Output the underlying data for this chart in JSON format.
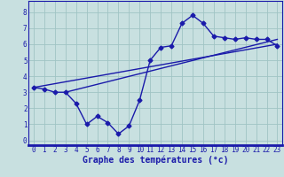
{
  "x": [
    0,
    1,
    2,
    3,
    4,
    5,
    6,
    7,
    8,
    9,
    10,
    11,
    12,
    13,
    14,
    15,
    16,
    17,
    18,
    19,
    20,
    21,
    22,
    23
  ],
  "temp_curve": [
    3.3,
    3.2,
    3.0,
    3.0,
    2.3,
    1.0,
    1.5,
    1.1,
    0.4,
    0.9,
    2.5,
    5.0,
    5.8,
    5.9,
    7.3,
    7.8,
    7.3,
    6.5,
    6.4,
    6.3,
    6.4,
    6.3,
    6.3,
    5.9
  ],
  "line1_x": [
    0,
    23
  ],
  "line1_y": [
    3.3,
    6.0
  ],
  "line2_x": [
    3,
    23
  ],
  "line2_y": [
    3.0,
    6.3
  ],
  "color": "#1a1aaa",
  "bg_color": "#c8e0e0",
  "grid_color": "#a0c4c4",
  "xlabel": "Graphe des températures (°c)",
  "xlim": [
    -0.5,
    23.5
  ],
  "ylim": [
    -0.3,
    8.7
  ],
  "xticks": [
    0,
    1,
    2,
    3,
    4,
    5,
    6,
    7,
    8,
    9,
    10,
    11,
    12,
    13,
    14,
    15,
    16,
    17,
    18,
    19,
    20,
    21,
    22,
    23
  ],
  "yticks": [
    0,
    1,
    2,
    3,
    4,
    5,
    6,
    7,
    8
  ],
  "marker": "D",
  "markersize": 2.5,
  "linewidth": 1.0,
  "xlabel_fontsize": 7.0,
  "tick_fontsize": 5.5
}
